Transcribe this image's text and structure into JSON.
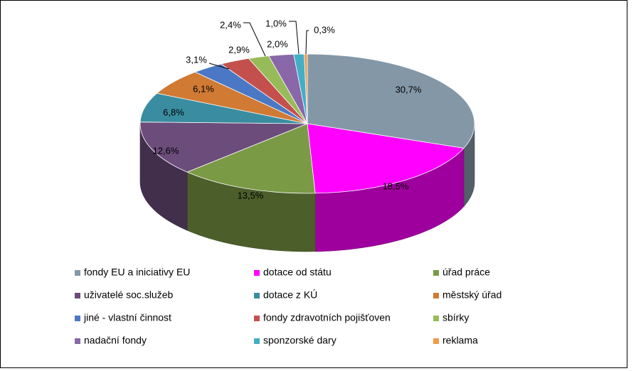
{
  "chart_data": {
    "type": "pie",
    "style": "3d",
    "title": "",
    "categories": [
      "fondy EU a iniciativy EU",
      "dotace od státu",
      "úřad práce",
      "uživatelé soc.služeb",
      "dotace z KÚ",
      "městský úřad",
      "jiné - vlastní činnost",
      "fondy zdravotních pojišťoven",
      "sbírky",
      "nadační fondy",
      "sponzorské dary",
      "reklama"
    ],
    "values": [
      30.7,
      18.5,
      13.5,
      12.6,
      6.8,
      6.1,
      3.1,
      2.9,
      2.0,
      2.4,
      1.0,
      0.3
    ],
    "labels": [
      "30,7%",
      "18,5%",
      "13,5%",
      "12,6%",
      "6,8%",
      "6,1%",
      "3,1%",
      "2,9%",
      "2,0%",
      "2,4%",
      "1,0%",
      "0,3%"
    ],
    "colors": [
      "#8497A7",
      "#FF00FF",
      "#7A9A45",
      "#6B4C7A",
      "#3A8DA0",
      "#D07A34",
      "#4A78C4",
      "#C4504E",
      "#98BB5A",
      "#8A67A8",
      "#42AFC6",
      "#F09A48"
    ],
    "legend_position": "bottom"
  }
}
